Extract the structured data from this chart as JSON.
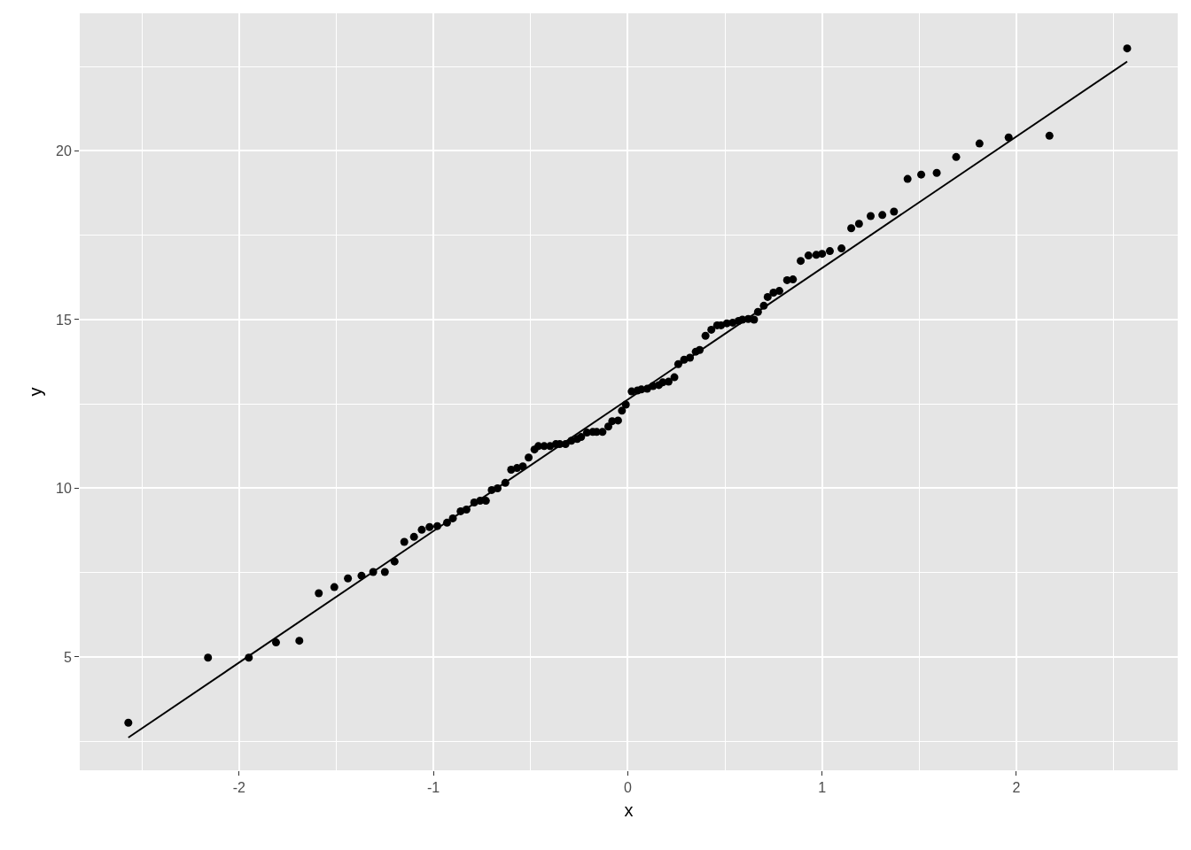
{
  "chart_data": {
    "type": "scatter",
    "xlabel": "x",
    "ylabel": "y",
    "xlim": [
      -2.82,
      2.83
    ],
    "ylim": [
      1.64,
      24.08
    ],
    "xticks": [
      -2,
      -1,
      0,
      1,
      2
    ],
    "yticks": [
      5,
      10,
      15,
      20
    ],
    "grid": true,
    "series": [
      {
        "marker": "circle",
        "color": "#000000",
        "x": [
          -2.57,
          -2.16,
          -1.95,
          -1.81,
          -1.69,
          -1.59,
          -1.51,
          -1.44,
          -1.37,
          -1.31,
          -1.25,
          -1.2,
          -1.15,
          -1.1,
          -1.06,
          -1.02,
          -0.98,
          -0.93,
          -0.9,
          -0.86,
          -0.83,
          -0.79,
          -0.76,
          -0.73,
          -0.7,
          -0.67,
          -0.63,
          -0.6,
          -0.57,
          -0.54,
          -0.51,
          -0.48,
          -0.46,
          -0.43,
          -0.4,
          -0.37,
          -0.35,
          -0.32,
          -0.29,
          -0.26,
          -0.24,
          -0.21,
          -0.18,
          -0.16,
          -0.13,
          -0.1,
          -0.08,
          -0.05,
          -0.03,
          -0.01,
          0.02,
          0.05,
          0.07,
          0.1,
          0.13,
          0.16,
          0.18,
          0.21,
          0.24,
          0.26,
          0.29,
          0.32,
          0.35,
          0.37,
          0.4,
          0.43,
          0.46,
          0.48,
          0.51,
          0.54,
          0.57,
          0.59,
          0.62,
          0.65,
          0.67,
          0.7,
          0.72,
          0.75,
          0.78,
          0.82,
          0.85,
          0.89,
          0.93,
          0.97,
          1.0,
          1.04,
          1.1,
          1.15,
          1.19,
          1.25,
          1.31,
          1.37,
          1.44,
          1.51,
          1.59,
          1.69,
          1.81,
          1.96,
          2.17,
          2.57
        ],
        "values": [
          3.05,
          4.98,
          4.98,
          5.43,
          5.48,
          6.89,
          7.07,
          7.33,
          7.41,
          7.52,
          7.52,
          7.83,
          8.41,
          8.56,
          8.77,
          8.85,
          8.88,
          8.98,
          9.11,
          9.32,
          9.37,
          9.58,
          9.63,
          9.63,
          9.95,
          10.0,
          10.16,
          10.55,
          10.6,
          10.65,
          10.91,
          11.15,
          11.25,
          11.25,
          11.25,
          11.31,
          11.31,
          11.31,
          11.41,
          11.46,
          11.52,
          11.65,
          11.67,
          11.67,
          11.67,
          11.83,
          11.99,
          12.01,
          12.3,
          12.48,
          12.87,
          12.9,
          12.93,
          12.95,
          13.03,
          13.06,
          13.14,
          13.16,
          13.29,
          13.68,
          13.81,
          13.87,
          14.05,
          14.1,
          14.52,
          14.7,
          14.83,
          14.83,
          14.89,
          14.91,
          14.96,
          15.0,
          15.02,
          15.0,
          15.23,
          15.41,
          15.67,
          15.8,
          15.85,
          16.17,
          16.19,
          16.74,
          16.9,
          16.92,
          16.95,
          17.03,
          17.11,
          17.71,
          17.84,
          18.07,
          18.1,
          18.2,
          19.17,
          19.3,
          19.35,
          19.82,
          20.22,
          20.4,
          20.45,
          23.04
        ]
      },
      {
        "type": "line",
        "marker": "none",
        "color": "#000000",
        "x": [
          -2.57,
          2.57
        ],
        "values": [
          2.61,
          22.65
        ]
      }
    ]
  }
}
